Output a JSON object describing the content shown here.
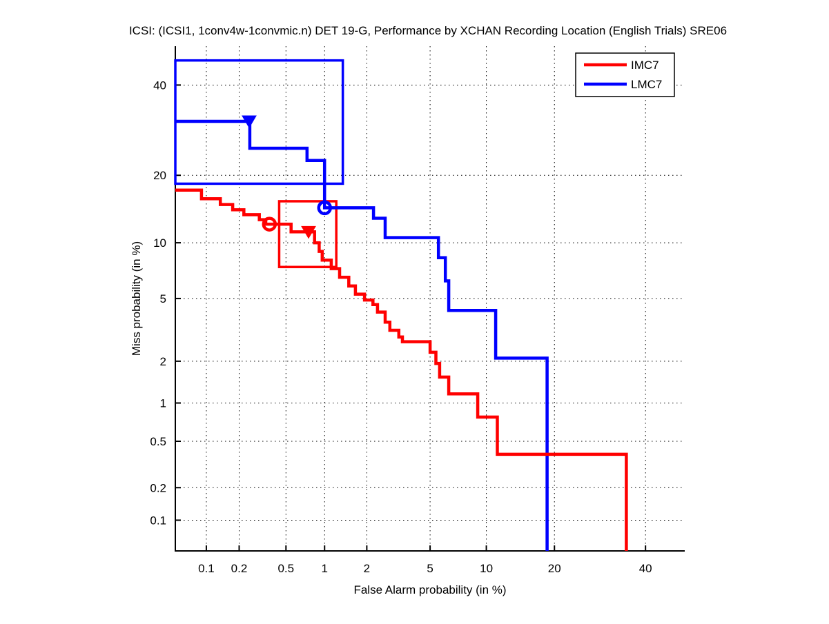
{
  "chart_data": {
    "type": "line",
    "subtype": "DET-curve",
    "title": "ICSI: (ICSI1, 1conv4w-1convmic.n) DET 19-G,  Performance by XCHAN Recording Location (English Trials) SRE06",
    "xlabel": "False Alarm probability (in %)",
    "ylabel": "Miss probability (in %)",
    "x_scale": "probit-percent",
    "y_scale": "probit-percent",
    "xlim": [
      0.05,
      50
    ],
    "ylim": [
      0.05,
      50
    ],
    "grid": "dotted",
    "x_ticks": {
      "values": [
        0.1,
        0.2,
        0.5,
        1,
        2,
        5,
        10,
        20,
        40
      ],
      "labels": [
        "0.1",
        "0.2",
        "0.5",
        "1",
        "2",
        "5",
        "10",
        "20",
        "40"
      ]
    },
    "y_ticks": {
      "values": [
        40,
        20,
        10,
        5,
        2,
        1,
        0.5,
        0.2,
        0.1
      ],
      "labels": [
        "40",
        "20",
        "10",
        "5",
        "2",
        "1",
        "0.5",
        "0.2",
        "0.1"
      ]
    },
    "legend": {
      "position": "top-right",
      "entries": [
        {
          "label": "IMC7",
          "color": "#ff0000"
        },
        {
          "label": "LMC7",
          "color": "#0000ff"
        }
      ]
    },
    "series": [
      {
        "name": "IMC7",
        "color": "#ff0000",
        "points": [
          [
            0.05,
            17.4
          ],
          [
            0.09,
            17.4
          ],
          [
            0.09,
            16.0
          ],
          [
            0.135,
            16.0
          ],
          [
            0.135,
            15.1
          ],
          [
            0.175,
            15.1
          ],
          [
            0.175,
            14.3
          ],
          [
            0.22,
            14.3
          ],
          [
            0.22,
            13.6
          ],
          [
            0.3,
            13.6
          ],
          [
            0.3,
            12.9
          ],
          [
            0.34,
            12.9
          ],
          [
            0.34,
            12.3
          ],
          [
            0.55,
            12.3
          ],
          [
            0.55,
            11.3
          ],
          [
            0.84,
            11.3
          ],
          [
            0.84,
            10.0
          ],
          [
            0.91,
            10.0
          ],
          [
            0.91,
            9.05
          ],
          [
            0.96,
            9.05
          ],
          [
            0.96,
            8.15
          ],
          [
            1.12,
            8.15
          ],
          [
            1.12,
            7.35
          ],
          [
            1.29,
            7.35
          ],
          [
            1.29,
            6.6
          ],
          [
            1.5,
            6.6
          ],
          [
            1.5,
            5.9
          ],
          [
            1.67,
            5.9
          ],
          [
            1.67,
            5.3
          ],
          [
            1.93,
            5.3
          ],
          [
            1.93,
            4.9
          ],
          [
            2.2,
            4.9
          ],
          [
            2.2,
            4.6
          ],
          [
            2.36,
            4.6
          ],
          [
            2.36,
            4.15
          ],
          [
            2.65,
            4.15
          ],
          [
            2.65,
            3.6
          ],
          [
            2.84,
            3.6
          ],
          [
            2.84,
            3.2
          ],
          [
            3.24,
            3.2
          ],
          [
            3.24,
            2.9
          ],
          [
            3.41,
            2.9
          ],
          [
            3.41,
            2.7
          ],
          [
            5.0,
            2.7
          ],
          [
            5.0,
            2.3
          ],
          [
            5.4,
            2.3
          ],
          [
            5.4,
            1.93
          ],
          [
            5.67,
            1.93
          ],
          [
            5.67,
            1.55
          ],
          [
            6.37,
            1.55
          ],
          [
            6.37,
            1.17
          ],
          [
            9.06,
            1.17
          ],
          [
            9.06,
            0.78
          ],
          [
            11.3,
            0.78
          ],
          [
            11.3,
            0.39
          ],
          [
            35.3,
            0.39
          ],
          [
            35.3,
            0.05
          ]
        ],
        "markers": [
          {
            "shape": "circle",
            "fa": 0.365,
            "miss": 12.3
          },
          {
            "shape": "triangle-down",
            "fa": 0.755,
            "miss": 11.3
          }
        ],
        "box": {
          "fa": [
            0.44,
            1.22
          ],
          "miss": [
            7.5,
            15.6
          ]
        }
      },
      {
        "name": "LMC7",
        "color": "#0000ff",
        "points": [
          [
            0.05,
            31.2
          ],
          [
            0.248,
            31.2
          ],
          [
            0.248,
            25.3
          ],
          [
            0.735,
            25.3
          ],
          [
            0.735,
            22.8
          ],
          [
            1.0,
            22.8
          ],
          [
            1.0,
            14.6
          ],
          [
            2.22,
            14.6
          ],
          [
            2.22,
            13.1
          ],
          [
            2.65,
            13.1
          ],
          [
            2.65,
            10.6
          ],
          [
            5.58,
            10.6
          ],
          [
            5.58,
            8.4
          ],
          [
            6.1,
            8.4
          ],
          [
            6.1,
            6.3
          ],
          [
            6.37,
            6.3
          ],
          [
            6.37,
            4.25
          ],
          [
            11.1,
            4.25
          ],
          [
            11.1,
            2.1
          ],
          [
            18.7,
            2.1
          ],
          [
            18.7,
            0.05
          ]
        ],
        "markers": [
          {
            "shape": "circle",
            "fa": 1.0,
            "miss": 14.6
          },
          {
            "shape": "triangle-down",
            "fa": 0.245,
            "miss": 31.2
          }
        ],
        "box": {
          "fa": [
            0.05,
            1.36
          ],
          "miss": [
            18.5,
            46.3
          ]
        }
      }
    ]
  }
}
